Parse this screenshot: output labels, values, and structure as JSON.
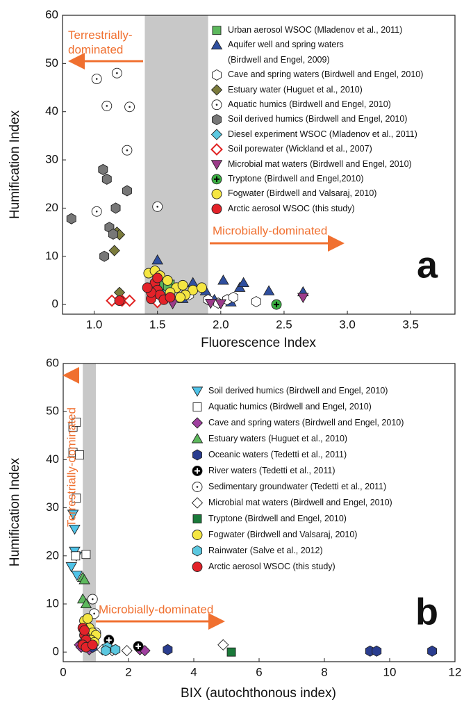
{
  "chart_data": [
    {
      "type": "scatter",
      "x_label": "Fluorescence Index",
      "y_label": "Humification Index",
      "panel_label": "a",
      "annotations": [
        "Terrestrially-dominated",
        "Microbially-dominated"
      ],
      "xlim": [
        0.75,
        3.85
      ],
      "ylim": [
        -2,
        60
      ],
      "xticks": [
        {
          "value": 1,
          "label": "1.0"
        },
        {
          "value": 1.5,
          "label": "1.5"
        },
        {
          "value": 2,
          "label": "2.0"
        },
        {
          "value": 2.5,
          "label": "2.5"
        },
        {
          "value": 3,
          "label": "3.0"
        },
        {
          "value": 3.5,
          "label": "3.5"
        }
      ],
      "yticks": [
        0,
        10,
        20,
        30,
        40,
        50,
        60
      ],
      "shaded_range": [
        1.4,
        1.9
      ],
      "series": [
        {
          "name": "Urban aerosol WSOC (Mladenov et al., 2011)",
          "color": "#5cb85c",
          "marker": "square",
          "x": [
            1.55,
            1.6,
            1.58
          ],
          "values": [
            4,
            4.2,
            3.5
          ]
        },
        {
          "name": "Aquifer well and spring waters (Birdwell and Engel, 2009)",
          "color": "#2f4f9f",
          "marker": "triangle-up",
          "x": [
            1.5,
            1.78,
            1.88,
            2.02,
            2.15,
            2.18,
            2.38,
            2.65,
            1.95,
            2.08,
            1.7
          ],
          "values": [
            9.2,
            4.5,
            2.8,
            5,
            3.5,
            4.5,
            2.8,
            2.6,
            1,
            0.5,
            1.2
          ]
        },
        {
          "name": "Cave and spring waters (Birdwell and Engel, 2010)",
          "color": "#ffffff",
          "marker": "hexagon",
          "x": [
            1.75,
            1.9,
            2.05,
            2.1,
            2.28,
            1.98
          ],
          "values": [
            2,
            1,
            1,
            1.5,
            0.6,
            0.3
          ]
        },
        {
          "name": "Estuary water (Huguet et al., 2010)",
          "color": "#7b7b3c",
          "marker": "diamond",
          "x": [
            1.16,
            1.18,
            1.2,
            1.2
          ],
          "values": [
            11.2,
            15,
            14.5,
            2.5
          ]
        },
        {
          "name": "Aquatic humics (Birdwell and Engel, 2010)",
          "color": "#ffffff",
          "marker": "circle-dot",
          "x": [
            1.02,
            1.18,
            1.1,
            1.28,
            1.26,
            1.02,
            1.5
          ],
          "values": [
            46.8,
            48,
            41.2,
            41,
            32,
            19.3,
            20.3
          ]
        },
        {
          "name": "Soil derived humics (Birdwell and Engel, 2010)",
          "color": "#777777",
          "marker": "hexagon",
          "x": [
            0.82,
            1.07,
            1.1,
            1.12,
            1.17,
            1.26,
            1.15,
            1.08
          ],
          "values": [
            17.8,
            28,
            26,
            16,
            20,
            23.6,
            14.6,
            10
          ]
        },
        {
          "name": "Diesel experiment WSOC (Mladenov et al., 2011)",
          "color": "#5bc8e0",
          "marker": "diamond",
          "x": [
            1.55,
            1.6
          ],
          "values": [
            2,
            1.5
          ]
        },
        {
          "name": "Soil porewater (Wickland et al., 2007)",
          "color": "#e02020",
          "marker": "open-diamond",
          "x": [
            1.14,
            1.22,
            1.28,
            1.5
          ],
          "values": [
            0.8,
            0.8,
            0.8,
            0.5
          ]
        },
        {
          "name": "Microbial mat waters (Birdwell and Engel, 2010)",
          "color": "#9c3b8a",
          "marker": "triangle-down",
          "x": [
            1.62,
            2.0,
            2.65,
            1.92
          ],
          "values": [
            0.2,
            0.2,
            1.5,
            0.3
          ]
        },
        {
          "name": "Tryptone (Birdwell and Engel,2010)",
          "color": "#3cb043",
          "marker": "circle-plus",
          "x": [
            2.44
          ],
          "values": [
            0
          ]
        },
        {
          "name": "Fogwater (Birdwell and Valsaraj, 2010)",
          "color": "#f5e642",
          "marker": "circle",
          "x": [
            1.43,
            1.48,
            1.52,
            1.65,
            1.7,
            1.78,
            1.85,
            1.6,
            1.72,
            1.58,
            1.68
          ],
          "values": [
            6.5,
            7,
            6,
            3.5,
            4,
            3,
            3.5,
            2.5,
            2,
            5,
            1.5
          ]
        },
        {
          "name": "Arctic aerosol WSOC (this study)",
          "color": "#e32229",
          "marker": "circle",
          "x": [
            1.2,
            1.45,
            1.48,
            1.5,
            1.52,
            1.45,
            1.55,
            1.6,
            1.5,
            1.42
          ],
          "values": [
            0.8,
            1.2,
            4.5,
            3,
            2,
            2.5,
            1,
            1.5,
            5.5,
            3.5
          ]
        }
      ]
    },
    {
      "type": "scatter",
      "x_label": "BIX (autochthonous index)",
      "y_label": "Humification Index",
      "panel_label": "b",
      "annotations": [
        "Terrestrially-dominated",
        "Microbially-dominated"
      ],
      "xlim": [
        0,
        12
      ],
      "ylim": [
        -2,
        60
      ],
      "xticks": [
        0,
        2,
        4,
        6,
        8,
        10,
        12
      ],
      "yticks": [
        0,
        10,
        20,
        30,
        40,
        50,
        60
      ],
      "shaded_range": [
        0.6,
        1.0
      ],
      "series": [
        {
          "name": "Soil derived humics (Birdwell and Engel, 2010)",
          "color": "#4fc3e8",
          "marker": "triangle-down",
          "x": [
            0.3,
            0.35,
            0.35,
            0.4,
            0.25,
            0.42
          ],
          "values": [
            28.7,
            25.6,
            21,
            20,
            17.8,
            16
          ]
        },
        {
          "name": "Aquatic humics (Birdwell and Engel, 2010)",
          "color": "#ffffff",
          "marker": "square",
          "x": [
            0.3,
            0.4,
            0.3,
            0.5,
            0.4,
            0.38,
            0.7
          ],
          "values": [
            46.8,
            47.8,
            41.5,
            41,
            32,
            20,
            20.3
          ]
        },
        {
          "name": "Cave and spring waters (Birdwell and Engel, 2010)",
          "color": "#a040a0",
          "marker": "diamond",
          "x": [
            0.5,
            0.6,
            0.55,
            2.35,
            2.5,
            0.8
          ],
          "values": [
            1.5,
            2,
            1,
            0.5,
            0.3,
            0.5
          ]
        },
        {
          "name": "Estuary waters (Huguet et al., 2010)",
          "color": "#5cb85c",
          "marker": "triangle-up",
          "x": [
            0.6,
            0.65,
            0.6,
            0.7,
            0.65
          ],
          "values": [
            15.5,
            15,
            11,
            10,
            2.5
          ]
        },
        {
          "name": "Oceanic waters (Tedetti et al., 2011)",
          "color": "#2a3d8f",
          "marker": "hexagon",
          "x": [
            3.2,
            9.4,
            9.6,
            11.3,
            0.9
          ],
          "values": [
            0.5,
            0.2,
            0.2,
            0.2,
            1
          ]
        },
        {
          "name": "River waters (Tedetti et al., 2011)",
          "color": "#000000",
          "marker": "circle-plus",
          "x": [
            1.4,
            2.3
          ],
          "values": [
            2.5,
            1.2
          ]
        },
        {
          "name": "Sedimentary groundwater (Tedetti et al., 2011)",
          "color": "#ffffff",
          "marker": "circle-dot",
          "x": [
            0.9,
            0.95,
            1.0
          ],
          "values": [
            11,
            8,
            4
          ]
        },
        {
          "name": "Microbial mat waters (Birdwell and Engel, 2010)",
          "color": "#ffffff",
          "marker": "diamond",
          "x": [
            4.9,
            1.95,
            1.2,
            1.5
          ],
          "values": [
            1.5,
            0.3,
            0.5,
            0.3
          ]
        },
        {
          "name": "Tryptone (Birdwell and Engel, 2010)",
          "color": "#1a7a3a",
          "marker": "square",
          "x": [
            5.15
          ],
          "values": [
            0
          ]
        },
        {
          "name": "Fogwater (Birdwell and Valsaraj, 2010)",
          "color": "#f5e642",
          "marker": "circle",
          "x": [
            0.65,
            0.75,
            0.8,
            0.9,
            1.0,
            0.85,
            0.95
          ],
          "values": [
            6.5,
            7,
            5,
            4,
            3.5,
            2.5,
            2
          ]
        },
        {
          "name": "Rainwater (Salve et al., 2012)",
          "color": "#5bc8e0",
          "marker": "hexagon",
          "x": [
            1.35,
            1.3,
            1.6
          ],
          "values": [
            1,
            0.3,
            0.5
          ]
        },
        {
          "name": "Arctic aerosol WSOC (this study)",
          "color": "#e32229",
          "marker": "circle",
          "x": [
            0.6,
            0.65,
            0.7,
            0.6,
            0.7,
            0.9,
            0.65
          ],
          "values": [
            5,
            3.5,
            2.5,
            1.5,
            1,
            1.5,
            4.5
          ]
        }
      ]
    }
  ]
}
